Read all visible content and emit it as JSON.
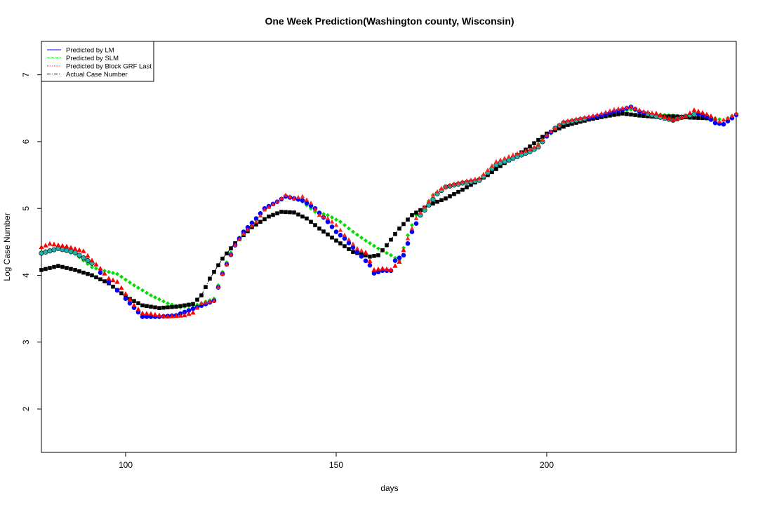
{
  "chart_data": {
    "type": "scatter",
    "title": "One Week Prediction(Washington county, Wisconsin)",
    "xlabel": "days",
    "ylabel": "Log Case Number",
    "xlim": [
      80,
      245
    ],
    "ylim": [
      1.35,
      7.5
    ],
    "x_ticks": [
      100,
      150,
      200
    ],
    "y_ticks": [
      2,
      3,
      4,
      5,
      6,
      7
    ],
    "legend_position": "top-left",
    "legend": [
      {
        "name": "Predicted by LM",
        "color": "#0000ff",
        "style": "solid"
      },
      {
        "name": "Predicted by SLM",
        "color": "#00ff00",
        "style": "dashed"
      },
      {
        "name": "Predicted by Block GRF Last",
        "color": "#ff0000",
        "style": "dotted"
      },
      {
        "name": "Actual Case Number",
        "color": "#000000",
        "style": "dotdash"
      }
    ],
    "actual_knots": [
      [
        80,
        4.08
      ],
      [
        84,
        4.14
      ],
      [
        88,
        4.08
      ],
      [
        92,
        4.0
      ],
      [
        96,
        3.88
      ],
      [
        100,
        3.68
      ],
      [
        104,
        3.55
      ],
      [
        108,
        3.51
      ],
      [
        112,
        3.53
      ],
      [
        116,
        3.57
      ],
      [
        118,
        3.7
      ],
      [
        120,
        3.95
      ],
      [
        123,
        4.25
      ],
      [
        126,
        4.48
      ],
      [
        130,
        4.72
      ],
      [
        134,
        4.88
      ],
      [
        137,
        4.95
      ],
      [
        140,
        4.94
      ],
      [
        143,
        4.85
      ],
      [
        146,
        4.7
      ],
      [
        150,
        4.52
      ],
      [
        154,
        4.35
      ],
      [
        158,
        4.28
      ],
      [
        160,
        4.3
      ],
      [
        162,
        4.45
      ],
      [
        165,
        4.7
      ],
      [
        168,
        4.9
      ],
      [
        172,
        5.05
      ],
      [
        176,
        5.15
      ],
      [
        180,
        5.28
      ],
      [
        186,
        5.5
      ],
      [
        190,
        5.68
      ],
      [
        195,
        5.88
      ],
      [
        200,
        6.12
      ],
      [
        205,
        6.25
      ],
      [
        210,
        6.33
      ],
      [
        214,
        6.38
      ],
      [
        218,
        6.42
      ],
      [
        222,
        6.39
      ],
      [
        226,
        6.37
      ],
      [
        230,
        6.38
      ],
      [
        234,
        6.36
      ],
      [
        238,
        6.35
      ]
    ],
    "lm_knots": [
      [
        80,
        4.33
      ],
      [
        84,
        4.4
      ],
      [
        88,
        4.34
      ],
      [
        92,
        4.18
      ],
      [
        96,
        3.9
      ],
      [
        100,
        3.65
      ],
      [
        104,
        3.38
      ],
      [
        108,
        3.38
      ],
      [
        112,
        3.4
      ],
      [
        116,
        3.5
      ],
      [
        119,
        3.57
      ],
      [
        121,
        3.62
      ],
      [
        123,
        4.02
      ],
      [
        126,
        4.45
      ],
      [
        128,
        4.65
      ],
      [
        131,
        4.85
      ],
      [
        133,
        5.0
      ],
      [
        136,
        5.1
      ],
      [
        138,
        5.18
      ],
      [
        140,
        5.15
      ],
      [
        142,
        5.12
      ],
      [
        145,
        5.0
      ],
      [
        148,
        4.8
      ],
      [
        150,
        4.65
      ],
      [
        152,
        4.55
      ],
      [
        155,
        4.35
      ],
      [
        158,
        4.15
      ],
      [
        159,
        4.03
      ],
      [
        161,
        4.07
      ],
      [
        163,
        4.07
      ],
      [
        164,
        4.22
      ],
      [
        166,
        4.3
      ],
      [
        168,
        4.65
      ],
      [
        170,
        4.9
      ],
      [
        172,
        5.05
      ],
      [
        174,
        5.22
      ],
      [
        176,
        5.32
      ],
      [
        180,
        5.38
      ],
      [
        184,
        5.42
      ],
      [
        188,
        5.65
      ],
      [
        192,
        5.75
      ],
      [
        196,
        5.85
      ],
      [
        198,
        5.92
      ],
      [
        200,
        6.08
      ],
      [
        202,
        6.2
      ],
      [
        204,
        6.28
      ],
      [
        208,
        6.33
      ],
      [
        212,
        6.38
      ],
      [
        216,
        6.45
      ],
      [
        218,
        6.48
      ],
      [
        220,
        6.52
      ],
      [
        222,
        6.45
      ],
      [
        226,
        6.38
      ],
      [
        230,
        6.32
      ],
      [
        233,
        6.38
      ],
      [
        236,
        6.42
      ],
      [
        238,
        6.38
      ],
      [
        240,
        6.28
      ],
      [
        242,
        6.26
      ],
      [
        245,
        6.4
      ]
    ],
    "slm_knots": [
      [
        80,
        4.35
      ],
      [
        84,
        4.4
      ],
      [
        88,
        4.32
      ],
      [
        92,
        4.12
      ],
      [
        96,
        4.05
      ],
      [
        98,
        4.02
      ],
      [
        102,
        3.85
      ],
      [
        106,
        3.7
      ],
      [
        110,
        3.58
      ],
      [
        113,
        3.52
      ],
      [
        117,
        3.56
      ],
      [
        121,
        3.65
      ],
      [
        123,
        4.05
      ],
      [
        126,
        4.48
      ],
      [
        128,
        4.65
      ],
      [
        131,
        4.82
      ],
      [
        133,
        5.0
      ],
      [
        136,
        5.1
      ],
      [
        138,
        5.18
      ],
      [
        141,
        5.15
      ],
      [
        143,
        5.05
      ],
      [
        145,
        4.95
      ],
      [
        148,
        4.9
      ],
      [
        151,
        4.8
      ],
      [
        154,
        4.65
      ],
      [
        157,
        4.52
      ],
      [
        160,
        4.4
      ],
      [
        163,
        4.3
      ],
      [
        165,
        4.22
      ],
      [
        167,
        4.6
      ],
      [
        169,
        4.9
      ],
      [
        171,
        5.02
      ],
      [
        173,
        5.2
      ],
      [
        176,
        5.32
      ],
      [
        180,
        5.38
      ],
      [
        184,
        5.45
      ],
      [
        188,
        5.65
      ],
      [
        192,
        5.75
      ],
      [
        196,
        5.85
      ],
      [
        200,
        6.08
      ],
      [
        204,
        6.25
      ],
      [
        208,
        6.33
      ],
      [
        212,
        6.37
      ],
      [
        216,
        6.42
      ],
      [
        220,
        6.48
      ],
      [
        224,
        6.42
      ],
      [
        228,
        6.4
      ],
      [
        232,
        6.38
      ],
      [
        236,
        6.4
      ],
      [
        240,
        6.35
      ],
      [
        242,
        6.32
      ],
      [
        245,
        6.42
      ]
    ],
    "grf_knots": [
      [
        80,
        4.42
      ],
      [
        82,
        4.47
      ],
      [
        86,
        4.43
      ],
      [
        90,
        4.36
      ],
      [
        92,
        4.22
      ],
      [
        94,
        4.1
      ],
      [
        96,
        3.95
      ],
      [
        98,
        3.9
      ],
      [
        100,
        3.72
      ],
      [
        102,
        3.55
      ],
      [
        104,
        3.43
      ],
      [
        106,
        3.42
      ],
      [
        110,
        3.38
      ],
      [
        114,
        3.4
      ],
      [
        116,
        3.44
      ],
      [
        118,
        3.58
      ],
      [
        121,
        3.62
      ],
      [
        123,
        4.02
      ],
      [
        126,
        4.45
      ],
      [
        128,
        4.62
      ],
      [
        131,
        4.8
      ],
      [
        133,
        4.98
      ],
      [
        136,
        5.1
      ],
      [
        138,
        5.2
      ],
      [
        140,
        5.15
      ],
      [
        142,
        5.18
      ],
      [
        144,
        5.08
      ],
      [
        146,
        4.9
      ],
      [
        148,
        4.85
      ],
      [
        150,
        4.75
      ],
      [
        152,
        4.6
      ],
      [
        155,
        4.4
      ],
      [
        157,
        4.34
      ],
      [
        159,
        4.08
      ],
      [
        161,
        4.1
      ],
      [
        163,
        4.08
      ],
      [
        165,
        4.2
      ],
      [
        167,
        4.55
      ],
      [
        169,
        4.85
      ],
      [
        171,
        5.02
      ],
      [
        173,
        5.2
      ],
      [
        175,
        5.3
      ],
      [
        177,
        5.35
      ],
      [
        180,
        5.4
      ],
      [
        184,
        5.45
      ],
      [
        188,
        5.7
      ],
      [
        192,
        5.8
      ],
      [
        196,
        5.88
      ],
      [
        198,
        5.95
      ],
      [
        200,
        6.1
      ],
      [
        204,
        6.3
      ],
      [
        208,
        6.35
      ],
      [
        212,
        6.4
      ],
      [
        216,
        6.48
      ],
      [
        220,
        6.52
      ],
      [
        223,
        6.45
      ],
      [
        226,
        6.42
      ],
      [
        230,
        6.32
      ],
      [
        233,
        6.38
      ],
      [
        235,
        6.47
      ],
      [
        237,
        6.43
      ],
      [
        239,
        6.38
      ],
      [
        241,
        6.3
      ],
      [
        243,
        6.35
      ],
      [
        245,
        6.42
      ]
    ]
  }
}
